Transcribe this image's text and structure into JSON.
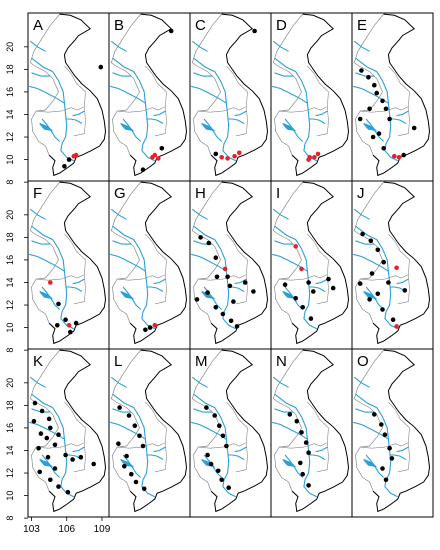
{
  "figure": {
    "panels": [
      {
        "letter": "A"
      },
      {
        "letter": "B"
      },
      {
        "letter": "C"
      },
      {
        "letter": "D"
      },
      {
        "letter": "E"
      },
      {
        "letter": "F"
      },
      {
        "letter": "G"
      },
      {
        "letter": "H"
      },
      {
        "letter": "I"
      },
      {
        "letter": "J"
      },
      {
        "letter": "K"
      },
      {
        "letter": "L"
      },
      {
        "letter": "M"
      },
      {
        "letter": "N"
      },
      {
        "letter": "O"
      }
    ],
    "y_axis_ticks": [
      "8",
      "10",
      "12",
      "14",
      "16",
      "18",
      "20"
    ],
    "x_axis_ticks": [
      "103",
      "106",
      "109"
    ],
    "colors": {
      "river": "#2aa0d8",
      "border": "#888888",
      "coast": "#000000",
      "point": "#000000",
      "point_highlight": "#e8202a"
    }
  }
}
